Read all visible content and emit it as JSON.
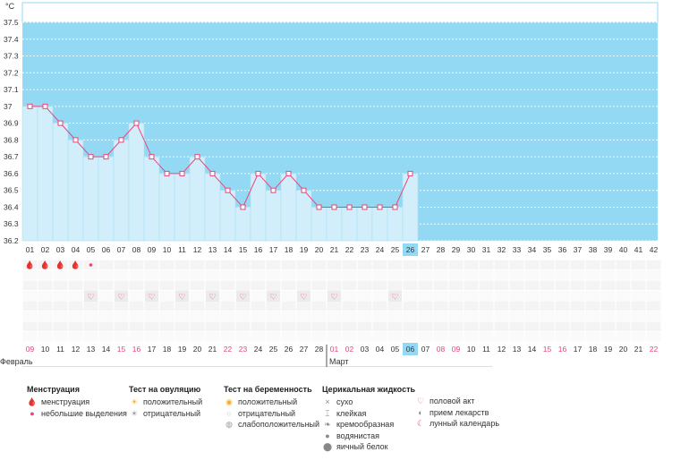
{
  "chart_data": {
    "type": "line",
    "unit_label": "°C",
    "y_ticks": [
      "37.5",
      "37.4",
      "37.3",
      "37.2",
      "37.1",
      "37",
      "36.9",
      "36.8",
      "36.7",
      "36.6",
      "36.5",
      "36.4",
      "36.3",
      "36.2"
    ],
    "ylim": [
      36.2,
      37.5
    ],
    "cycle_days": [
      "01",
      "02",
      "03",
      "04",
      "05",
      "06",
      "07",
      "08",
      "09",
      "10",
      "11",
      "12",
      "13",
      "14",
      "15",
      "16",
      "17",
      "18",
      "19",
      "20",
      "21",
      "22",
      "23",
      "24",
      "25",
      "26",
      "27",
      "28",
      "29",
      "30",
      "31",
      "32",
      "33",
      "34",
      "35",
      "36",
      "37",
      "38",
      "39",
      "40",
      "41",
      "42"
    ],
    "dates": [
      "09",
      "10",
      "11",
      "12",
      "13",
      "14",
      "15",
      "16",
      "17",
      "18",
      "19",
      "20",
      "21",
      "22",
      "23",
      "24",
      "25",
      "26",
      "27",
      "28",
      "01",
      "02",
      "03",
      "04",
      "05",
      "06",
      "07",
      "08",
      "09",
      "10",
      "11",
      "12",
      "13",
      "14",
      "15",
      "16",
      "17",
      "18",
      "19",
      "20",
      "21",
      "22"
    ],
    "weekend_date_indices": [
      0,
      6,
      7,
      13,
      14,
      20,
      21,
      27,
      28,
      34,
      35,
      41
    ],
    "current_day_index": 25,
    "temperatures": [
      37.0,
      37.0,
      36.9,
      36.8,
      36.7,
      36.7,
      36.8,
      36.9,
      36.7,
      36.6,
      36.6,
      36.7,
      36.6,
      36.5,
      36.4,
      36.6,
      36.5,
      36.6,
      36.5,
      36.4,
      36.4,
      36.4,
      36.4,
      36.4,
      36.4,
      36.6
    ],
    "menstruation_days": [
      0,
      1,
      2,
      3
    ],
    "light_spotting_days": [
      4
    ],
    "intercourse_days": [
      4,
      6,
      8,
      10,
      12,
      14,
      16,
      18,
      20,
      24
    ],
    "month_labels": [
      {
        "label": "Февраль",
        "start_index": 0
      },
      {
        "label": "Март",
        "start_index": 20
      }
    ],
    "colors": {
      "area_fill": "#d2eefb",
      "background": "#94d9f4",
      "line": "#e8457a",
      "current_day": "#94d9f4",
      "weekend": "#e8457a"
    }
  },
  "legend": {
    "menstruation": {
      "title": "Менструация",
      "items": [
        {
          "label": "менструация",
          "icon": "drop-double-icon"
        },
        {
          "label": "небольшие выделения",
          "icon": "drop-icon"
        }
      ]
    },
    "ovulation_test": {
      "title": "Тест на овуляцию",
      "items": [
        {
          "label": "положительный",
          "icon": "sun-icon"
        },
        {
          "label": "отрицательный",
          "icon": "sun-gray-icon"
        }
      ]
    },
    "pregnancy_test": {
      "title": "Тест на беременность",
      "items": [
        {
          "label": "положительный",
          "icon": "circle-yellow-icon"
        },
        {
          "label": "отрицательный",
          "icon": "circle-gray-icon"
        },
        {
          "label": "слабоположительный",
          "icon": "circle-dark-icon"
        }
      ]
    },
    "cervical_fluid": {
      "title": "Церикальная жидкость",
      "items": [
        {
          "label": "сухо",
          "icon": "x-icon"
        },
        {
          "label": "клейкая",
          "icon": "sticky-icon"
        },
        {
          "label": "кремообразная",
          "icon": "cream-icon"
        },
        {
          "label": "водянистая",
          "icon": "water-drop-icon"
        },
        {
          "label": "яичный белок",
          "icon": "egg-white-icon"
        }
      ]
    },
    "other": {
      "items": [
        {
          "label": "половой акт",
          "icon": "heart-icon"
        },
        {
          "label": "прием лекарств",
          "icon": "pill-icon"
        },
        {
          "label": "лунный календарь",
          "icon": "moon-icon"
        }
      ]
    }
  }
}
